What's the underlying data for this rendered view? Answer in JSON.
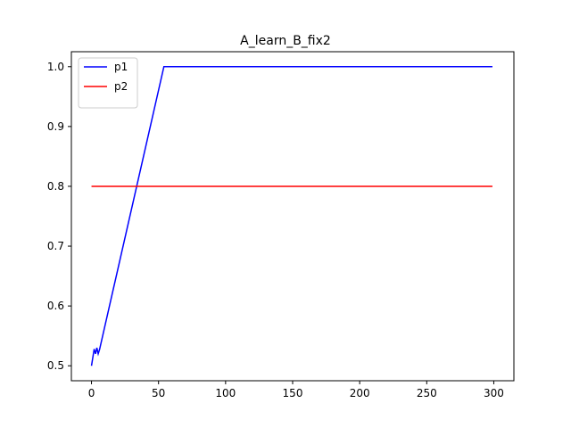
{
  "chart_data": {
    "type": "line",
    "title": "A_learn_B_fix2",
    "xlabel": "",
    "ylabel": "",
    "xlim": [
      -15,
      315
    ],
    "ylim": [
      0.475,
      1.025
    ],
    "xticks": [
      0,
      50,
      100,
      150,
      200,
      250,
      300
    ],
    "yticks": [
      0.5,
      0.6,
      0.7,
      0.8,
      0.9,
      1.0
    ],
    "ytick_labels": [
      "0.5",
      "0.6",
      "0.7",
      "0.8",
      "0.9",
      "1.0"
    ],
    "grid": false,
    "legend": {
      "position": "top-left"
    },
    "series": [
      {
        "name": "p1",
        "color": "#0000ff",
        "x": [
          0,
          2,
          3,
          4,
          5,
          6,
          54,
          299
        ],
        "y": [
          0.5,
          0.528,
          0.52,
          0.53,
          0.52,
          0.527,
          1.0,
          1.0
        ]
      },
      {
        "name": "p2",
        "color": "#ff0000",
        "x": [
          0,
          299
        ],
        "y": [
          0.8,
          0.8
        ]
      }
    ]
  }
}
